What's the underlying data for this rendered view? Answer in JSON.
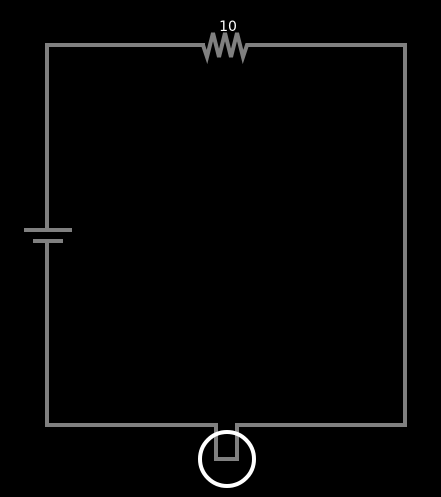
{
  "diagram": {
    "type": "circuit",
    "background_color": "#000000",
    "wire_color": "#808080",
    "bulb_color": "#ffffff",
    "components": [
      {
        "kind": "battery",
        "side": "left"
      },
      {
        "kind": "resistor",
        "side": "top",
        "value_label": "10"
      },
      {
        "kind": "light-bulb",
        "side": "bottom"
      }
    ]
  }
}
